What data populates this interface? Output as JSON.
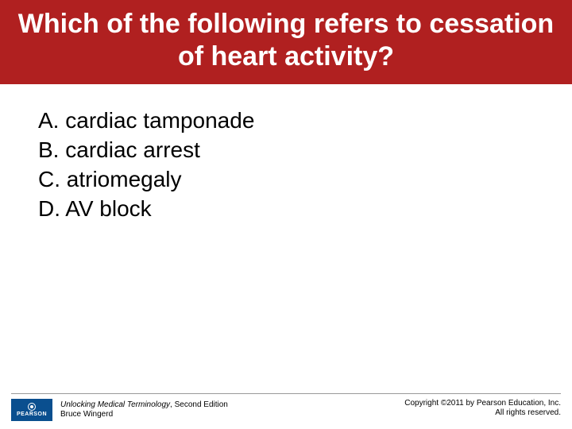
{
  "colors": {
    "title_bg": "#b02020",
    "title_text": "#ffffff",
    "body_bg": "#ffffff",
    "option_text": "#000000",
    "footer_line": "#999999",
    "logo_bg": "#0a4f8f",
    "logo_text": "#ffffff"
  },
  "title": "Which of the following refers to cessation of heart activity?",
  "options": [
    {
      "label": "A.",
      "text": "cardiac tamponade"
    },
    {
      "label": "B.",
      "text": "cardiac arrest"
    },
    {
      "label": "C.",
      "text": "atriomegaly"
    },
    {
      "label": "D.",
      "text": "AV block"
    }
  ],
  "footer": {
    "logo_text": "PEARSON",
    "book_title": "Unlocking Medical Terminology",
    "book_edition": ", Second Edition",
    "author": "Bruce Wingerd",
    "copyright_line1": "Copyright ©2011 by Pearson Education, Inc.",
    "copyright_line2": "All rights reserved."
  }
}
